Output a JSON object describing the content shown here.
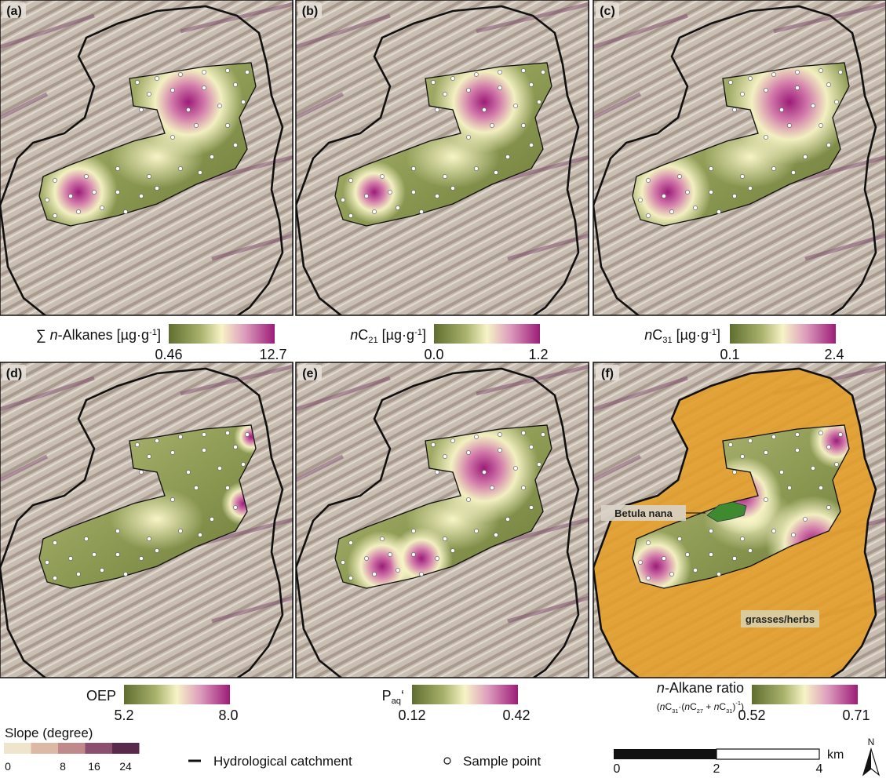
{
  "panels": [
    {
      "label": "(a)",
      "colorbar": {
        "title": [
          "∑ ",
          "n",
          "-Alkanes [µg·g",
          "-1",
          "]"
        ],
        "min": "0.46",
        "max": "12.7"
      }
    },
    {
      "label": "(b)",
      "colorbar": {
        "title": [
          "n",
          "C",
          "21",
          " [µg·g",
          "-1",
          "]"
        ],
        "min": "0.0",
        "max": "1.2"
      }
    },
    {
      "label": "(c)",
      "colorbar": {
        "title": [
          "n",
          "C",
          "31",
          " [µg·g",
          "-1",
          "]"
        ],
        "min": "0.1",
        "max": "2.4"
      }
    },
    {
      "label": "(d)",
      "colorbar": {
        "title": [
          "OEP"
        ],
        "min": "5.2",
        "max": "8.0"
      }
    },
    {
      "label": "(e)",
      "colorbar": {
        "title": [
          "P",
          "aq",
          "‘"
        ],
        "min": "0.12",
        "max": "0.42"
      }
    },
    {
      "label": "(f)",
      "colorbar": {
        "title": [
          "n",
          "-Alkane ratio"
        ],
        "subtitle": [
          "(",
          "n",
          "C",
          "31",
          "·(",
          "n",
          "C",
          "27",
          " + ",
          "n",
          "C",
          "31",
          ")",
          "-1",
          ")"
        ],
        "min": "0.52",
        "max": "0.71"
      },
      "annotations": [
        "Betula nana",
        "grasses/herbs"
      ]
    }
  ],
  "legend": {
    "slope": {
      "title": "Slope (degree)",
      "ticks": [
        "0",
        "8",
        "16",
        "24"
      ]
    },
    "catchment": "Hydrological catchment",
    "sample": "Sample point"
  },
  "scale_bar": {
    "ticks": [
      "0",
      "2",
      "4"
    ],
    "unit": "km"
  },
  "north": "N"
}
